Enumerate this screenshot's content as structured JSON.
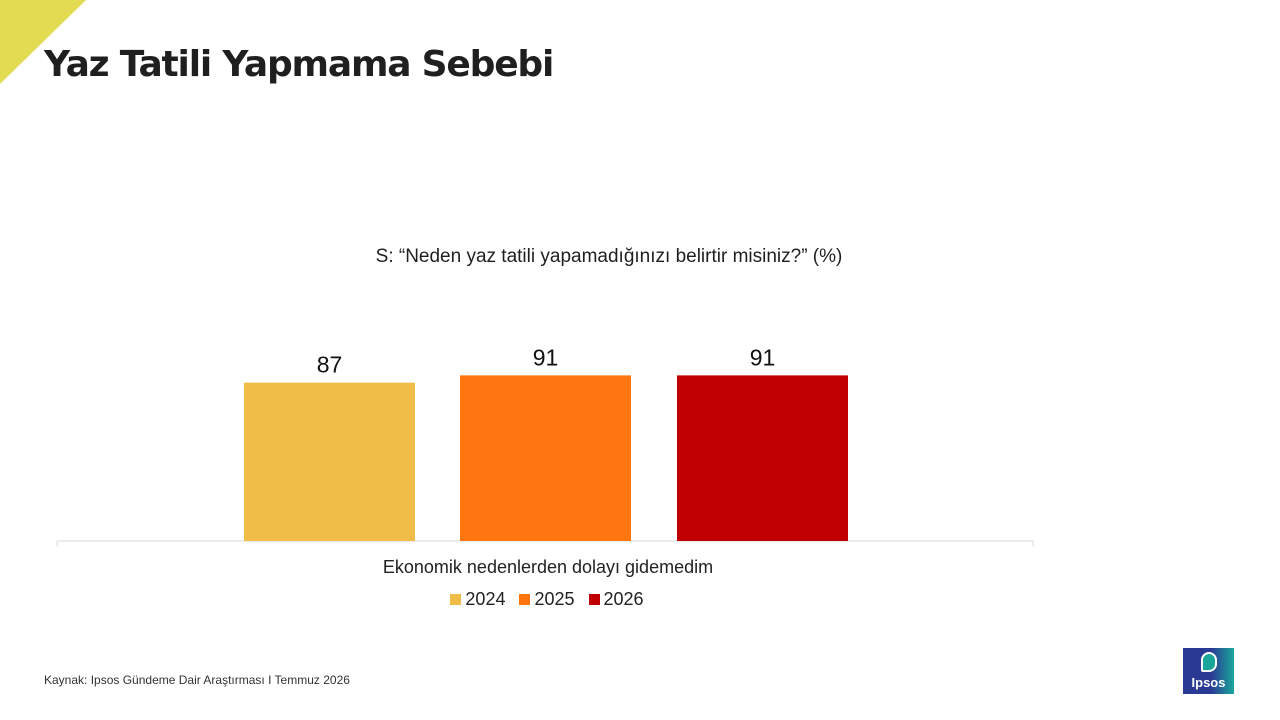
{
  "header": {
    "title": "Yaz Tatili Yapmama Sebebi"
  },
  "question": "S: “Neden yaz tatili yapamadığınızı belirtir misiniz?” (%)",
  "chart_data": {
    "type": "bar",
    "title": "",
    "categories": [
      "Ekonomik nedenlerden dolayı gidemedim"
    ],
    "series": [
      {
        "name": "2024",
        "values": [
          87
        ],
        "color": "#f0be48"
      },
      {
        "name": "2025",
        "values": [
          91
        ],
        "color": "#ff7510"
      },
      {
        "name": "2026",
        "values": [
          91
        ],
        "color": "#c00000"
      }
    ],
    "xlabel": "",
    "ylabel": "",
    "ylim": [
      0,
      100
    ],
    "grid": false,
    "data_labels": true,
    "legend": "bottom"
  },
  "footer": {
    "source": "Kaynak: Ipsos Gündeme Dair Araştırması I Temmuz 2026",
    "logo_text": "Ipsos"
  }
}
